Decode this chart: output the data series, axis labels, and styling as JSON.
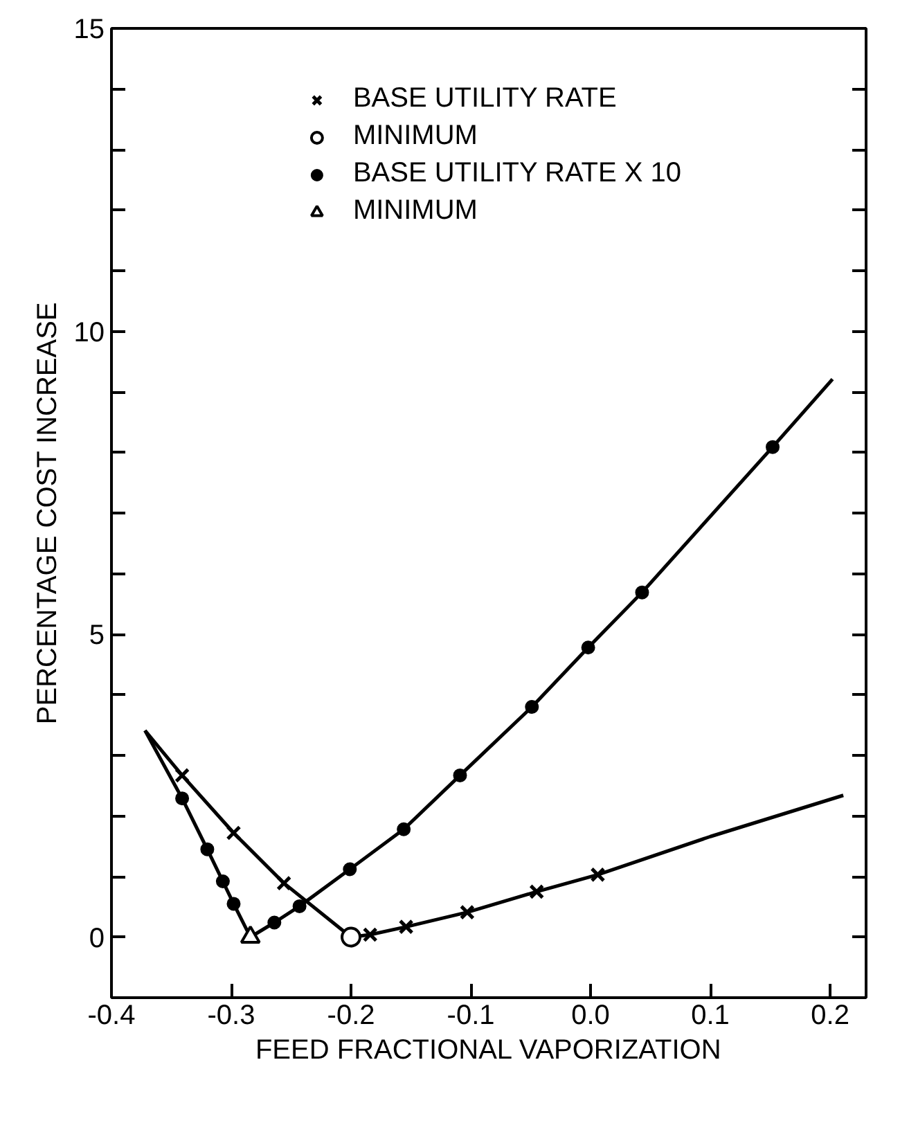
{
  "chart_data": {
    "type": "line",
    "xlabel": "FEED FRACTIONAL VAPORIZATION",
    "ylabel": "PERCENTAGE COST INCREASE",
    "xlim": [
      -0.4,
      0.23
    ],
    "ylim": [
      -1,
      15
    ],
    "xticks": [
      -0.4,
      -0.3,
      -0.2,
      -0.1,
      {
        "value": 0.0,
        "label": "0.0"
      },
      0.1,
      0.2
    ],
    "yticks": [
      0,
      {
        "value": 1,
        "label": null
      },
      {
        "value": 2,
        "label": null
      },
      {
        "value": 3,
        "label": null
      },
      {
        "value": 4,
        "label": null
      },
      5,
      {
        "value": 6,
        "label": null
      },
      {
        "value": 7,
        "label": null
      },
      {
        "value": 8,
        "label": null
      },
      {
        "value": 9,
        "label": null
      },
      10,
      {
        "value": 11,
        "label": null
      },
      {
        "value": 12,
        "label": null
      },
      {
        "value": 13,
        "label": null
      },
      {
        "value": 14,
        "label": null
      },
      15
    ],
    "grid": false,
    "legend": "top",
    "line_style": "solid",
    "series": [
      {
        "marker": "none",
        "color": "#000000",
        "x": [
          -0.372,
          -0.341,
          -0.298,
          -0.256,
          -0.2,
          -0.184,
          -0.154,
          -0.103,
          -0.045,
          0.006,
          0.1,
          0.211
        ],
        "values": [
          3.41,
          2.67,
          1.72,
          0.89,
          0.0,
          0.04,
          0.17,
          0.41,
          0.75,
          1.03,
          1.66,
          2.34
        ]
      },
      {
        "marker": "none",
        "color": "#000000",
        "x": [
          -0.372,
          -0.341,
          -0.32,
          -0.307,
          -0.298,
          -0.284,
          -0.264,
          -0.243,
          -0.201,
          -0.156,
          -0.109,
          -0.049,
          -0.002,
          0.043,
          0.152,
          0.202
        ],
        "values": [
          3.41,
          2.29,
          1.45,
          0.92,
          0.55,
          0.0,
          0.24,
          0.51,
          1.12,
          1.78,
          2.67,
          3.8,
          4.78,
          5.69,
          8.09,
          9.21
        ]
      },
      {
        "type": "scatter",
        "marker": "cross",
        "name": "BASE UTILITY RATE",
        "color": "#000000",
        "x": [
          -0.341,
          -0.298,
          -0.256,
          -0.184,
          -0.154,
          -0.103,
          -0.045,
          0.006
        ],
        "values": [
          2.67,
          1.72,
          0.89,
          0.04,
          0.17,
          0.41,
          0.75,
          1.03
        ]
      },
      {
        "type": "scatter",
        "marker": "circle_open",
        "name": "MINIMUM",
        "color": "#000000",
        "x": [
          -0.2
        ],
        "values": [
          0.0
        ]
      },
      {
        "type": "scatter",
        "marker": "circle",
        "name": "BASE UTILITY RATE X 10",
        "color": "#000000",
        "x": [
          -0.341,
          -0.32,
          -0.307,
          -0.298,
          -0.264,
          -0.243,
          -0.201,
          -0.156,
          -0.109,
          -0.049,
          -0.002,
          0.043,
          0.152
        ],
        "values": [
          2.29,
          1.45,
          0.92,
          0.55,
          0.24,
          0.51,
          1.12,
          1.78,
          2.67,
          3.8,
          4.78,
          5.69,
          8.09
        ]
      },
      {
        "type": "scatter",
        "marker": "triangle_open",
        "name": "MINIMUM",
        "color": "#000000",
        "x": [
          -0.284
        ],
        "values": [
          0.0
        ]
      }
    ]
  }
}
